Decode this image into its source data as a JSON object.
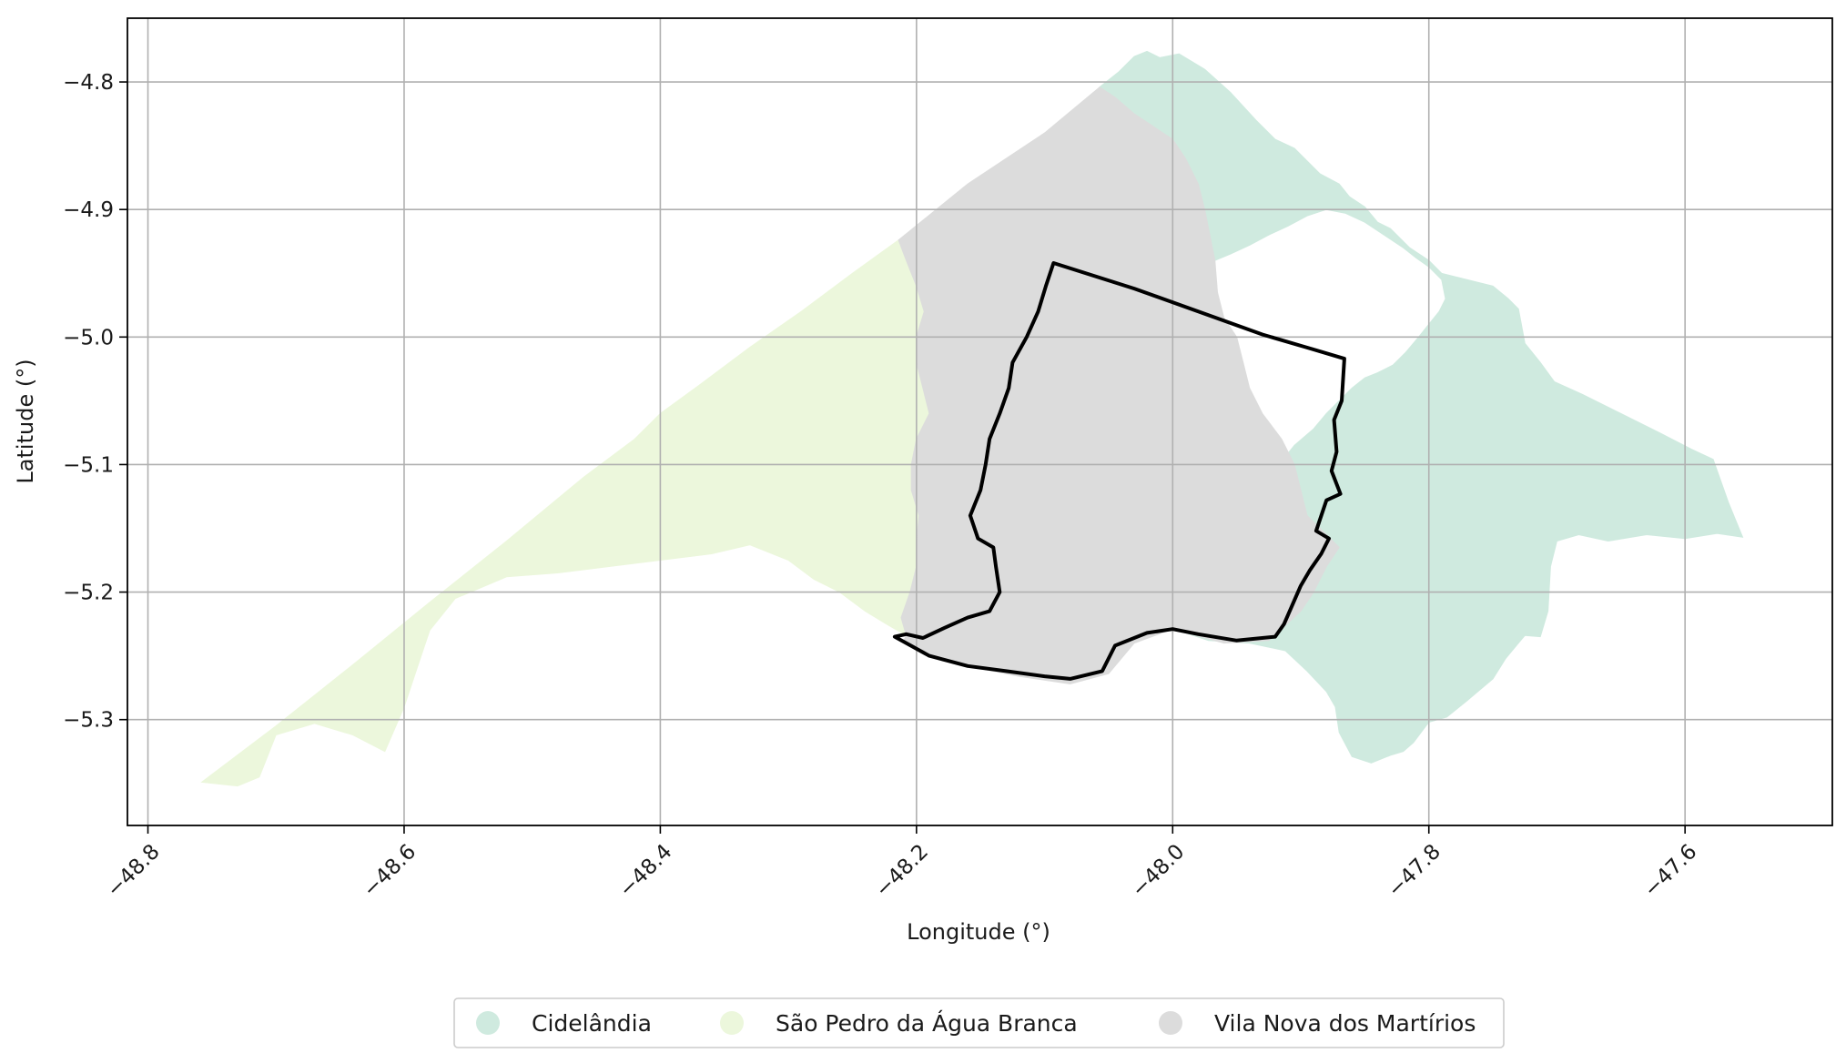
{
  "chart_data": {
    "type": "map",
    "xlabel": "Longitude (°)",
    "ylabel": "Latitude (°)",
    "xlim": [
      -48.816,
      -47.485
    ],
    "ylim": [
      -5.383,
      -4.75
    ],
    "xticks": [
      -48.8,
      -48.6,
      -48.4,
      -48.2,
      -48.0,
      -47.8,
      -47.6
    ],
    "yticks": [
      -4.8,
      -4.9,
      -5.0,
      -5.1,
      -5.2,
      -5.3
    ],
    "xtick_labels": [
      "−48.8",
      "−48.6",
      "−48.4",
      "−48.2",
      "−48.0",
      "−47.8",
      "−47.6"
    ],
    "ytick_labels": [
      "−4.8",
      "−4.9",
      "−5.0",
      "−5.1",
      "−5.2",
      "−5.3"
    ],
    "grid": true,
    "legend_placement": "bottom-center",
    "regions": [
      {
        "name": "Cidelândia",
        "color": "#cfeadf",
        "polygon": [
          [
            -48.057,
            -4.804
          ],
          [
            -48.042,
            -4.792
          ],
          [
            -48.03,
            -4.78
          ],
          [
            -48.02,
            -4.776
          ],
          [
            -48.01,
            -4.781
          ],
          [
            -47.995,
            -4.778
          ],
          [
            -47.975,
            -4.79
          ],
          [
            -47.955,
            -4.808
          ],
          [
            -47.935,
            -4.83
          ],
          [
            -47.92,
            -4.845
          ],
          [
            -47.905,
            -4.852
          ],
          [
            -47.885,
            -4.872
          ],
          [
            -47.87,
            -4.88
          ],
          [
            -47.862,
            -4.89
          ],
          [
            -47.85,
            -4.898
          ],
          [
            -47.84,
            -4.91
          ],
          [
            -47.83,
            -4.915
          ],
          [
            -47.815,
            -4.93
          ],
          [
            -47.8,
            -4.94
          ],
          [
            -47.79,
            -4.95
          ],
          [
            -47.77,
            -4.955
          ],
          [
            -47.75,
            -4.96
          ],
          [
            -47.738,
            -4.97
          ],
          [
            -47.73,
            -4.978
          ],
          [
            -47.725,
            -5.005
          ],
          [
            -47.713,
            -5.02
          ],
          [
            -47.702,
            -5.035
          ],
          [
            -47.68,
            -5.045
          ],
          [
            -47.65,
            -5.06
          ],
          [
            -47.62,
            -5.075
          ],
          [
            -47.595,
            -5.088
          ],
          [
            -47.578,
            -5.096
          ],
          [
            -47.566,
            -5.13
          ],
          [
            -47.555,
            -5.157
          ],
          [
            -47.575,
            -5.154
          ],
          [
            -47.6,
            -5.158
          ],
          [
            -47.63,
            -5.155
          ],
          [
            -47.66,
            -5.16
          ],
          [
            -47.683,
            -5.155
          ],
          [
            -47.7,
            -5.16
          ],
          [
            -47.705,
            -5.18
          ],
          [
            -47.707,
            -5.215
          ],
          [
            -47.713,
            -5.235
          ],
          [
            -47.725,
            -5.234
          ],
          [
            -47.73,
            -5.24
          ],
          [
            -47.74,
            -5.252
          ],
          [
            -47.75,
            -5.268
          ],
          [
            -47.77,
            -5.285
          ],
          [
            -47.786,
            -5.298
          ],
          [
            -47.8,
            -5.302
          ],
          [
            -47.812,
            -5.318
          ],
          [
            -47.82,
            -5.325
          ],
          [
            -47.83,
            -5.328
          ],
          [
            -47.845,
            -5.334
          ],
          [
            -47.86,
            -5.329
          ],
          [
            -47.87,
            -5.31
          ],
          [
            -47.873,
            -5.29
          ],
          [
            -47.88,
            -5.278
          ],
          [
            -47.895,
            -5.262
          ],
          [
            -47.912,
            -5.246
          ],
          [
            -47.94,
            -5.24
          ],
          [
            -47.972,
            -5.238
          ],
          [
            -47.99,
            -5.232
          ],
          [
            -48.0,
            -5.229
          ],
          [
            -47.995,
            -5.205
          ],
          [
            -47.978,
            -5.185
          ],
          [
            -47.962,
            -5.17
          ],
          [
            -47.948,
            -5.142
          ],
          [
            -47.93,
            -5.12
          ],
          [
            -47.917,
            -5.1
          ],
          [
            -47.905,
            -5.085
          ],
          [
            -47.89,
            -5.072
          ],
          [
            -47.88,
            -5.06
          ],
          [
            -47.87,
            -5.05
          ],
          [
            -47.86,
            -5.04
          ],
          [
            -47.85,
            -5.032
          ],
          [
            -47.84,
            -5.028
          ],
          [
            -47.828,
            -5.022
          ],
          [
            -47.818,
            -5.012
          ],
          [
            -47.808,
            -5.0
          ],
          [
            -47.8,
            -4.99
          ],
          [
            -47.792,
            -4.98
          ],
          [
            -47.787,
            -4.97
          ],
          [
            -47.79,
            -4.955
          ],
          [
            -47.8,
            -4.945
          ],
          [
            -47.81,
            -4.938
          ],
          [
            -47.82,
            -4.93
          ],
          [
            -47.835,
            -4.92
          ],
          [
            -47.85,
            -4.91
          ],
          [
            -47.865,
            -4.903
          ],
          [
            -47.88,
            -4.9
          ],
          [
            -47.895,
            -4.905
          ],
          [
            -47.91,
            -4.913
          ],
          [
            -47.925,
            -4.92
          ],
          [
            -47.94,
            -4.928
          ],
          [
            -47.955,
            -4.935
          ],
          [
            -47.967,
            -4.94
          ],
          [
            -47.97,
            -4.925
          ],
          [
            -47.975,
            -4.9
          ],
          [
            -47.98,
            -4.88
          ],
          [
            -47.99,
            -4.86
          ],
          [
            -48.0,
            -4.845
          ],
          [
            -48.015,
            -4.835
          ],
          [
            -48.03,
            -4.825
          ],
          [
            -48.045,
            -4.812
          ]
        ]
      },
      {
        "name": "São Pedro da Água Branca",
        "color": "#ecf7dc",
        "polygon": [
          [
            -48.758,
            -5.349
          ],
          [
            -48.7,
            -5.305
          ],
          [
            -48.64,
            -5.257
          ],
          [
            -48.58,
            -5.208
          ],
          [
            -48.52,
            -5.16
          ],
          [
            -48.46,
            -5.11
          ],
          [
            -48.42,
            -5.08
          ],
          [
            -48.4,
            -5.06
          ],
          [
            -48.37,
            -5.038
          ],
          [
            -48.33,
            -5.008
          ],
          [
            -48.29,
            -4.98
          ],
          [
            -48.25,
            -4.95
          ],
          [
            -48.214,
            -4.924
          ],
          [
            -48.208,
            -4.94
          ],
          [
            -48.2,
            -4.96
          ],
          [
            -48.194,
            -4.98
          ],
          [
            -48.2,
            -5.0
          ],
          [
            -48.2,
            -5.02
          ],
          [
            -48.195,
            -5.04
          ],
          [
            -48.19,
            -5.06
          ],
          [
            -48.2,
            -5.08
          ],
          [
            -48.204,
            -5.1
          ],
          [
            -48.204,
            -5.12
          ],
          [
            -48.198,
            -5.14
          ],
          [
            -48.2,
            -5.16
          ],
          [
            -48.2,
            -5.18
          ],
          [
            -48.205,
            -5.2
          ],
          [
            -48.212,
            -5.22
          ],
          [
            -48.208,
            -5.234
          ],
          [
            -48.222,
            -5.226
          ],
          [
            -48.24,
            -5.215
          ],
          [
            -48.26,
            -5.2
          ],
          [
            -48.28,
            -5.19
          ],
          [
            -48.3,
            -5.175
          ],
          [
            -48.33,
            -5.163
          ],
          [
            -48.36,
            -5.17
          ],
          [
            -48.4,
            -5.175
          ],
          [
            -48.44,
            -5.18
          ],
          [
            -48.48,
            -5.185
          ],
          [
            -48.52,
            -5.188
          ],
          [
            -48.56,
            -5.205
          ],
          [
            -48.58,
            -5.23
          ],
          [
            -48.59,
            -5.26
          ],
          [
            -48.6,
            -5.29
          ],
          [
            -48.615,
            -5.325
          ],
          [
            -48.64,
            -5.312
          ],
          [
            -48.67,
            -5.303
          ],
          [
            -48.7,
            -5.312
          ],
          [
            -48.713,
            -5.345
          ],
          [
            -48.73,
            -5.352
          ]
        ]
      },
      {
        "name": "Vila Nova dos Martírios",
        "color": "#dcdcdc",
        "polygon": [
          [
            -48.214,
            -4.924
          ],
          [
            -48.16,
            -4.88
          ],
          [
            -48.1,
            -4.84
          ],
          [
            -48.057,
            -4.804
          ],
          [
            -48.045,
            -4.812
          ],
          [
            -48.03,
            -4.825
          ],
          [
            -48.015,
            -4.835
          ],
          [
            -48.0,
            -4.845
          ],
          [
            -47.99,
            -4.86
          ],
          [
            -47.98,
            -4.88
          ],
          [
            -47.975,
            -4.9
          ],
          [
            -47.97,
            -4.925
          ],
          [
            -47.967,
            -4.94
          ],
          [
            -47.965,
            -4.965
          ],
          [
            -47.96,
            -4.985
          ],
          [
            -47.95,
            -5.0
          ],
          [
            -47.945,
            -5.02
          ],
          [
            -47.94,
            -5.04
          ],
          [
            -47.93,
            -5.06
          ],
          [
            -47.915,
            -5.08
          ],
          [
            -47.905,
            -5.1
          ],
          [
            -47.9,
            -5.12
          ],
          [
            -47.895,
            -5.14
          ],
          [
            -47.88,
            -5.155
          ],
          [
            -47.87,
            -5.165
          ],
          [
            -47.88,
            -5.18
          ],
          [
            -47.89,
            -5.2
          ],
          [
            -47.9,
            -5.215
          ],
          [
            -47.925,
            -5.238
          ],
          [
            -47.96,
            -5.24
          ],
          [
            -48.0,
            -5.229
          ],
          [
            -48.03,
            -5.24
          ],
          [
            -48.05,
            -5.264
          ],
          [
            -48.08,
            -5.272
          ],
          [
            -48.12,
            -5.266
          ],
          [
            -48.15,
            -5.26
          ],
          [
            -48.18,
            -5.254
          ],
          [
            -48.21,
            -5.238
          ],
          [
            -48.208,
            -5.234
          ],
          [
            -48.212,
            -5.22
          ],
          [
            -48.205,
            -5.2
          ],
          [
            -48.2,
            -5.18
          ],
          [
            -48.2,
            -5.16
          ],
          [
            -48.198,
            -5.14
          ],
          [
            -48.204,
            -5.12
          ],
          [
            -48.204,
            -5.1
          ],
          [
            -48.2,
            -5.08
          ],
          [
            -48.19,
            -5.06
          ],
          [
            -48.195,
            -5.04
          ],
          [
            -48.2,
            -5.02
          ],
          [
            -48.2,
            -5.0
          ],
          [
            -48.194,
            -4.98
          ],
          [
            -48.2,
            -4.96
          ],
          [
            -48.208,
            -4.94
          ]
        ]
      }
    ],
    "outline": {
      "color": "#000000",
      "polygon": [
        [
          -48.093,
          -4.942
        ],
        [
          -48.03,
          -4.962
        ],
        [
          -47.98,
          -4.98
        ],
        [
          -47.93,
          -4.998
        ],
        [
          -47.896,
          -5.008
        ],
        [
          -47.866,
          -5.017
        ],
        [
          -47.868,
          -5.05
        ],
        [
          -47.874,
          -5.065
        ],
        [
          -47.872,
          -5.09
        ],
        [
          -47.876,
          -5.105
        ],
        [
          -47.869,
          -5.123
        ],
        [
          -47.88,
          -5.128
        ],
        [
          -47.888,
          -5.152
        ],
        [
          -47.878,
          -5.158
        ],
        [
          -47.884,
          -5.17
        ],
        [
          -47.893,
          -5.183
        ],
        [
          -47.9,
          -5.195
        ],
        [
          -47.913,
          -5.225
        ],
        [
          -47.92,
          -5.235
        ],
        [
          -47.95,
          -5.238
        ],
        [
          -47.98,
          -5.233
        ],
        [
          -48.0,
          -5.229
        ],
        [
          -48.02,
          -5.232
        ],
        [
          -48.045,
          -5.242
        ],
        [
          -48.055,
          -5.262
        ],
        [
          -48.08,
          -5.268
        ],
        [
          -48.1,
          -5.266
        ],
        [
          -48.13,
          -5.262
        ],
        [
          -48.16,
          -5.258
        ],
        [
          -48.19,
          -5.25
        ],
        [
          -48.217,
          -5.235
        ],
        [
          -48.208,
          -5.233
        ],
        [
          -48.195,
          -5.236
        ],
        [
          -48.178,
          -5.228
        ],
        [
          -48.16,
          -5.22
        ],
        [
          -48.143,
          -5.215
        ],
        [
          -48.135,
          -5.2
        ],
        [
          -48.138,
          -5.18
        ],
        [
          -48.14,
          -5.165
        ],
        [
          -48.152,
          -5.158
        ],
        [
          -48.158,
          -5.14
        ],
        [
          -48.15,
          -5.12
        ],
        [
          -48.146,
          -5.1
        ],
        [
          -48.143,
          -5.08
        ],
        [
          -48.135,
          -5.06
        ],
        [
          -48.128,
          -5.04
        ],
        [
          -48.125,
          -5.02
        ],
        [
          -48.114,
          -5.0
        ],
        [
          -48.105,
          -4.98
        ],
        [
          -48.099,
          -4.96
        ]
      ]
    }
  },
  "legend": {
    "items": [
      {
        "label": "Cidelândia",
        "color": "#cfeadf"
      },
      {
        "label": "São Pedro da Água Branca",
        "color": "#ecf7dc"
      },
      {
        "label": "Vila Nova dos Martírios",
        "color": "#dcdcdc"
      }
    ]
  }
}
